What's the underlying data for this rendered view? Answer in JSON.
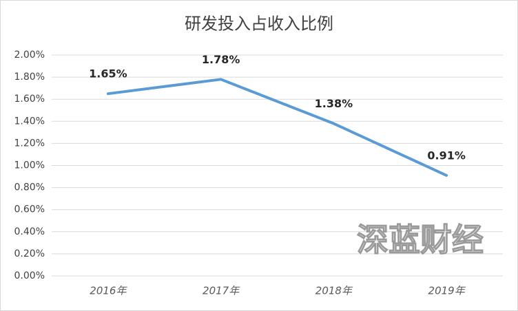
{
  "chart_data": {
    "type": "line",
    "title": "研发投入占收入比例",
    "categories": [
      "2016年",
      "2017年",
      "2018年",
      "2019年"
    ],
    "values": [
      1.65,
      1.78,
      1.38,
      0.91
    ],
    "value_labels": [
      "1.65%",
      "1.78%",
      "1.38%",
      "0.91%"
    ],
    "color": "#5b9bd5",
    "ylim": [
      0,
      2
    ],
    "yticks": [
      {
        "value": 0,
        "label": "0.00%"
      },
      {
        "value": 0.2,
        "label": "0.20%"
      },
      {
        "value": 0.4,
        "label": "0.40%"
      },
      {
        "value": 0.6,
        "label": "0.60%"
      },
      {
        "value": 0.8,
        "label": "0.80%"
      },
      {
        "value": 1,
        "label": "1.00%"
      },
      {
        "value": 1.2,
        "label": "1.20%"
      },
      {
        "value": 1.4,
        "label": "1.40%"
      },
      {
        "value": 1.6,
        "label": "1.60%"
      },
      {
        "value": 1.8,
        "label": "1.80%"
      },
      {
        "value": 2,
        "label": "2.00%"
      }
    ],
    "grid": true,
    "watermark": "深蓝财经"
  }
}
